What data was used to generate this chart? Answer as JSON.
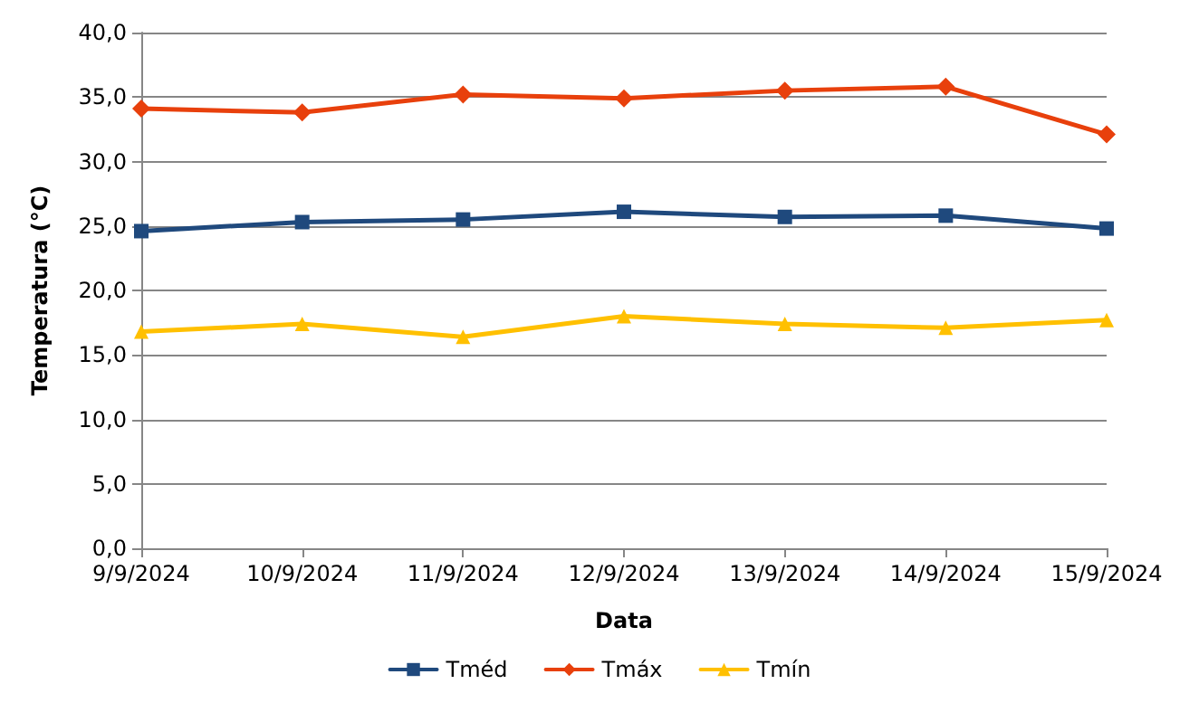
{
  "chart_data": {
    "type": "line",
    "xlabel": "Data",
    "ylabel": "Temperatura (°C)",
    "categories": [
      "9/9/2024",
      "10/9/2024",
      "11/9/2024",
      "12/9/2024",
      "13/9/2024",
      "14/9/2024",
      "15/9/2024"
    ],
    "series": [
      {
        "name": "Tméd",
        "color": "#1f497d",
        "marker": "square",
        "values": [
          24.6,
          25.3,
          25.5,
          26.1,
          25.7,
          25.8,
          24.8
        ]
      },
      {
        "name": "Tmáx",
        "color": "#e8400c",
        "marker": "diamond",
        "values": [
          34.1,
          33.8,
          35.2,
          34.9,
          35.5,
          35.8,
          32.1
        ]
      },
      {
        "name": "Tmín",
        "color": "#ffc000",
        "marker": "triangle",
        "values": [
          16.8,
          17.4,
          16.4,
          18.0,
          17.4,
          17.1,
          17.7
        ]
      }
    ],
    "ylim": [
      0,
      40
    ],
    "yticks": [
      {
        "value": 0,
        "label": "0,0"
      },
      {
        "value": 5,
        "label": "5,0"
      },
      {
        "value": 10,
        "label": "10,0"
      },
      {
        "value": 15,
        "label": "15,0"
      },
      {
        "value": 20,
        "label": "20,0"
      },
      {
        "value": 25,
        "label": "25,0"
      },
      {
        "value": 30,
        "label": "30,0"
      },
      {
        "value": 35,
        "label": "35,0"
      },
      {
        "value": 40,
        "label": "40,0"
      }
    ],
    "grid": "y",
    "legend": "bottom",
    "line_style": "solid"
  }
}
